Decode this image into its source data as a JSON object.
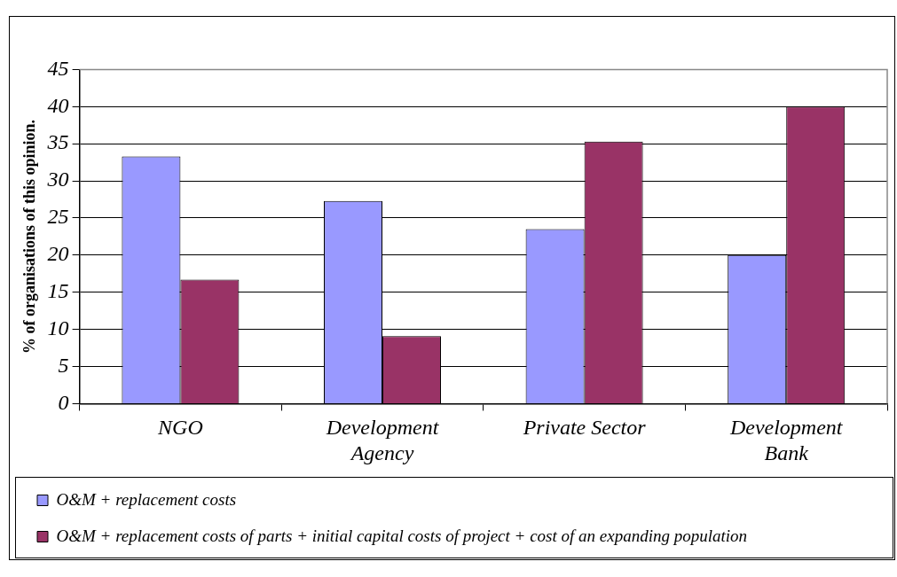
{
  "chart_data": {
    "type": "bar",
    "ylabel": "% of organisations of this opinion.",
    "categories": [
      "NGO",
      "Development Agency",
      "Private Sector",
      "Development Bank"
    ],
    "series": [
      {
        "name": "O&M + replacement costs",
        "color": "#9999ff",
        "values": [
          33.3,
          27.3,
          23.5,
          20
        ]
      },
      {
        "name": "O&M + replacement costs of parts + initial capital costs of project + cost of an expanding population",
        "color": "#993366",
        "values": [
          16.7,
          9.1,
          35.3,
          40
        ]
      }
    ],
    "ylim": [
      0,
      45
    ],
    "yticks": [
      0,
      5,
      10,
      15,
      20,
      25,
      30,
      35,
      40,
      45
    ],
    "grid": "y",
    "legend": "bottom"
  }
}
